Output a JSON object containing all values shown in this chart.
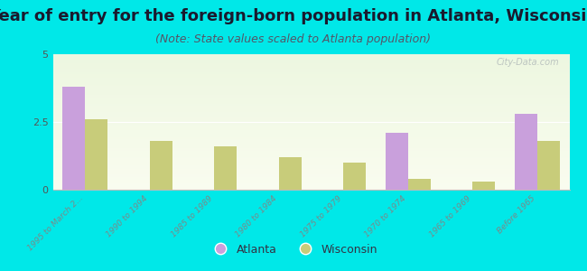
{
  "title": "Year of entry for the foreign-born population in Atlanta, Wisconsin",
  "subtitle": "(Note: State values scaled to Atlanta population)",
  "categories": [
    "1995 to March 2...",
    "1990 to 1994",
    "1985 to 1989",
    "1980 to 1984",
    "1975 to 1979",
    "1970 to 1974",
    "1965 to 1969",
    "Before 1965"
  ],
  "atlanta_values": [
    3.8,
    0,
    0,
    0,
    0,
    2.1,
    0,
    2.8
  ],
  "wisconsin_values": [
    2.6,
    1.8,
    1.6,
    1.2,
    1.0,
    0.4,
    0.3,
    1.8
  ],
  "atlanta_color": "#c9a0dc",
  "wisconsin_color": "#c8cc7a",
  "background_color": "#00e8e8",
  "ylim": [
    0,
    5
  ],
  "yticks": [
    0,
    2.5,
    5
  ],
  "bar_width": 0.35,
  "title_fontsize": 13,
  "subtitle_fontsize": 9,
  "watermark": "City-Data.com",
  "legend_labels": [
    "Atlanta",
    "Wisconsin"
  ]
}
